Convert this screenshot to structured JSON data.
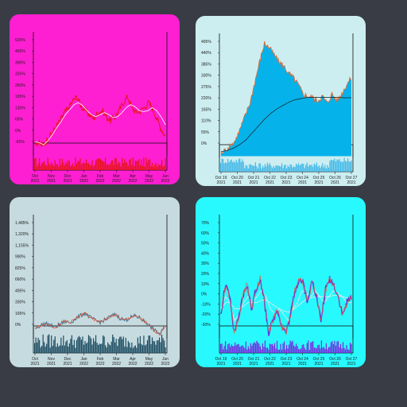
{
  "chart_data": [
    {
      "type": "line",
      "panel": "top-left",
      "bg": "#ff1fd2",
      "price_color": "#e8141a",
      "ma_color": "#ffffff",
      "volume_color": "#e8141a",
      "y_ticks": [
        "520%",
        "455%",
        "390%",
        "325%",
        "260%",
        "195%",
        "130%",
        "65%",
        "0%",
        "-65%"
      ],
      "ylim": [
        -65,
        545
      ],
      "x_ticks": [
        [
          "Oct",
          "2021"
        ],
        [
          "Nov",
          "2021"
        ],
        [
          "Dec",
          "2021"
        ],
        [
          "Jan",
          "2022"
        ],
        [
          "Feb",
          "2022"
        ],
        [
          "Mar",
          "2022"
        ],
        [
          "Apr",
          "2022"
        ],
        [
          "May",
          "2022"
        ],
        [
          "Jun",
          "2022"
        ]
      ],
      "series": [
        {
          "values": [
            10,
            -5,
            -15,
            20,
            45,
            80,
            110,
            150,
            170,
            210,
            230,
            180,
            160,
            140,
            120,
            150,
            160,
            130,
            110,
            130,
            160,
            200,
            230,
            180,
            150,
            160,
            175,
            200,
            170,
            120,
            70,
            35
          ]
        },
        {
          "values": [
            5,
            0,
            -10,
            10,
            40,
            75,
            105,
            140,
            165,
            190,
            200,
            185,
            160,
            140,
            130,
            140,
            150,
            140,
            125,
            130,
            150,
            175,
            190,
            180,
            160,
            155,
            160,
            175,
            160,
            130,
            90
          ]
        }
      ]
    },
    {
      "type": "area",
      "panel": "top-right",
      "bg": "#cdeef1",
      "price_color": "#e06b36",
      "fill_color": "#06b2ea",
      "ma_color": "#1a1a1a",
      "volume_color": "#43b9e8",
      "y_ticks": [
        "495%",
        "440%",
        "385%",
        "330%",
        "275%",
        "220%",
        "165%",
        "110%",
        "55%",
        "0%"
      ],
      "ylim": [
        -15,
        515
      ],
      "x_ticks": [
        [
          "Oct 19",
          "2021"
        ],
        [
          "Oct 20",
          "2021"
        ],
        [
          "Oct 21",
          "2021"
        ],
        [
          "Oct 22",
          "2021"
        ],
        [
          "Oct 23",
          "2021"
        ],
        [
          "Oct 24",
          "2021"
        ],
        [
          "Oct 25",
          "2021"
        ],
        [
          "Oct 26",
          "2021"
        ],
        [
          "Oct 27",
          "2021"
        ]
      ],
      "series": [
        {
          "values": [
            0,
            20,
            35,
            60,
            110,
            165,
            220,
            310,
            400,
            480,
            460,
            430,
            400,
            380,
            350,
            330,
            300,
            260,
            250,
            245,
            230,
            250,
            220,
            260,
            230,
            260,
            300,
            330
          ]
        },
        {
          "values": [
            10,
            15,
            25,
            40,
            60,
            90,
            120,
            150,
            175,
            195,
            210,
            225,
            235,
            240,
            245,
            245,
            245,
            245,
            245,
            244,
            243,
            243
          ]
        }
      ]
    },
    {
      "type": "line",
      "panel": "bottom-left",
      "bg": "#c6dbe0",
      "price_color": "#e2593e",
      "price_color_2": "#2f6f8c",
      "volume_color": "#1f4e63",
      "y_ticks": [
        "1,485%",
        "1,320%",
        "1,155%",
        "990%",
        "825%",
        "660%",
        "495%",
        "330%",
        "165%",
        "0%"
      ],
      "ylim": [
        -60,
        1560
      ],
      "x_ticks": [
        [
          "Oct",
          "2021"
        ],
        [
          "Nov",
          "2021"
        ],
        [
          "Dec",
          "2021"
        ],
        [
          "Jan",
          "2022"
        ],
        [
          "Feb",
          "2022"
        ],
        [
          "Mar",
          "2022"
        ],
        [
          "Apr",
          "2022"
        ],
        [
          "May",
          "2022"
        ],
        [
          "Jun",
          "2022"
        ]
      ],
      "series": [
        {
          "values": [
            80,
            110,
            140,
            120,
            90,
            130,
            170,
            150,
            200,
            240,
            280,
            220,
            180,
            160,
            190,
            230,
            260,
            210,
            180,
            220,
            240,
            210,
            160,
            100,
            40,
            0,
            120
          ]
        }
      ]
    },
    {
      "type": "line",
      "panel": "bottom-right",
      "bg": "#28f9fe",
      "price_color": "#6d2fd3",
      "price_color_2": "#e85a47",
      "ma_color": "#e8e8e8",
      "volume_color": "#7a2be0",
      "y_ticks": [
        "70%",
        "60%",
        "50%",
        "40%",
        "30%",
        "20%",
        "10%",
        "0%",
        "-10%",
        "-20%",
        "-30%"
      ],
      "ylim": [
        -30,
        72
      ],
      "x_ticks": [
        [
          "Oct 19",
          "2021"
        ],
        [
          "Oct 20",
          "2021"
        ],
        [
          "Oct 21",
          "2021"
        ],
        [
          "Oct 22",
          "2021"
        ],
        [
          "Oct 23",
          "2021"
        ],
        [
          "Oct 24",
          "2021"
        ],
        [
          "Oct 25",
          "2021"
        ],
        [
          "Oct 26",
          "2021"
        ],
        [
          "Oct 27",
          "2021"
        ]
      ],
      "series": [
        {
          "values": [
            -10,
            15,
            5,
            -25,
            -15,
            5,
            15,
            -5,
            10,
            20,
            0,
            -25,
            -15,
            -5,
            -20,
            -25,
            -10,
            10,
            20,
            15,
            0,
            20,
            5,
            -15,
            10,
            20,
            15,
            5,
            -10,
            0,
            5
          ]
        },
        {
          "values": [
            -5,
            5,
            0,
            -15,
            -10,
            0,
            5,
            0,
            5,
            10,
            5,
            -5,
            -10,
            -5,
            -10,
            -15,
            -5,
            0,
            10,
            8,
            5,
            10,
            5,
            0,
            5,
            10,
            8,
            5,
            0,
            0
          ]
        },
        {
          "values": [
            -5,
            0,
            0,
            -5,
            -5,
            -3,
            0,
            0,
            0,
            2,
            2,
            0,
            -3,
            -5,
            -7,
            -8,
            -6,
            -3,
            0,
            3,
            4,
            5,
            5,
            5,
            5,
            6,
            6,
            5,
            4,
            3
          ]
        }
      ]
    }
  ]
}
